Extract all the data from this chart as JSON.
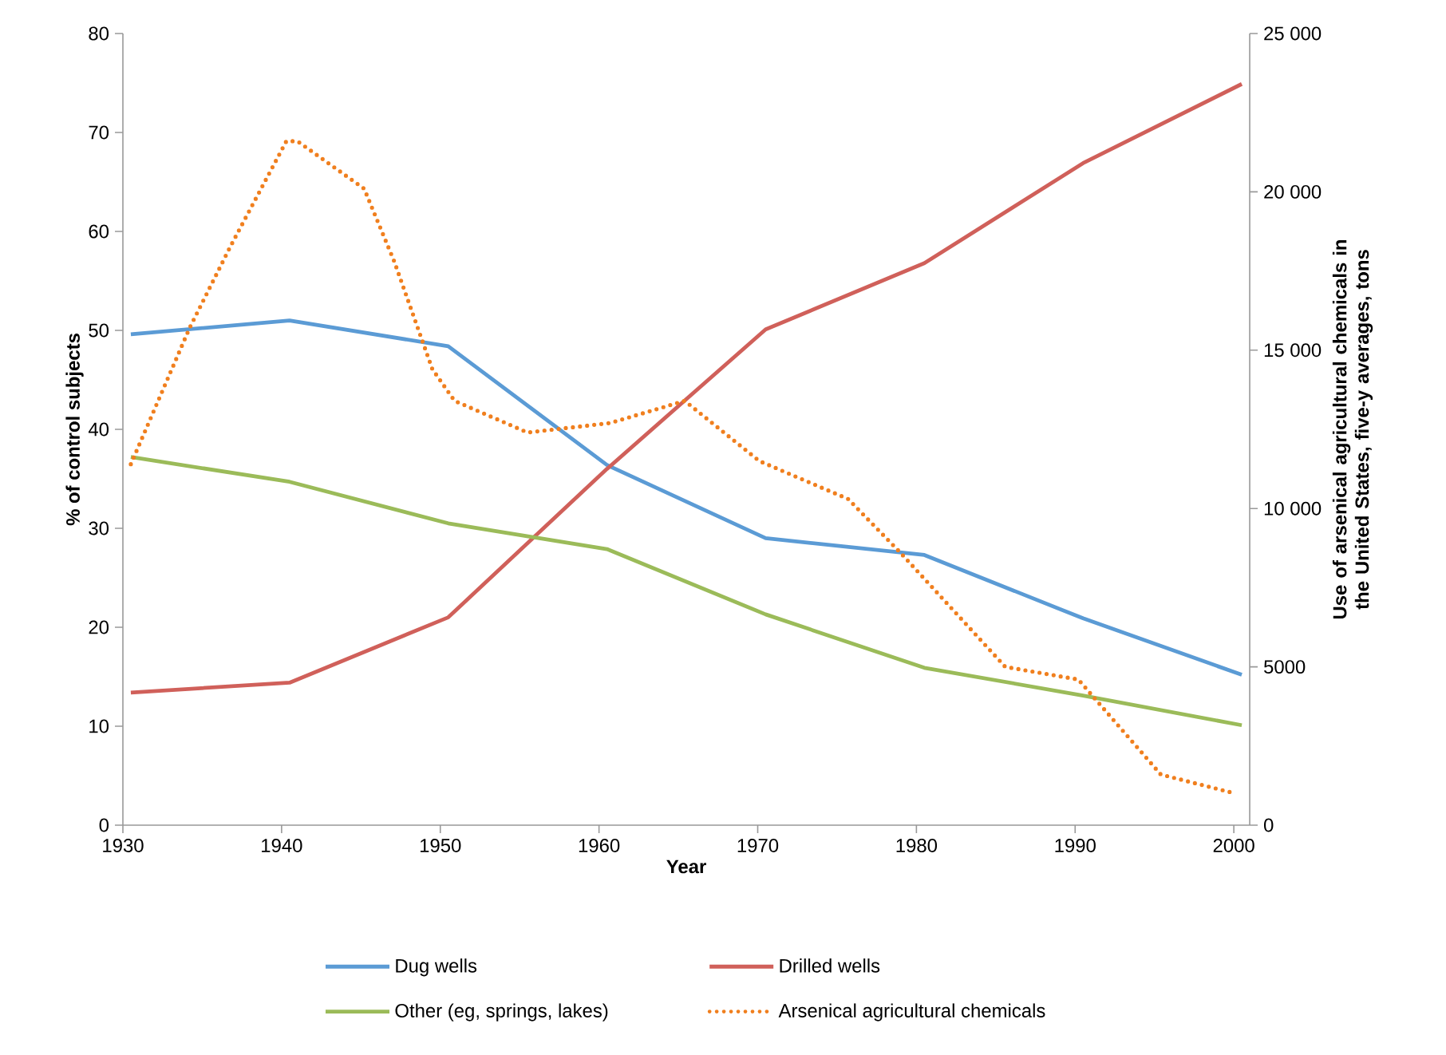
{
  "chart_data": {
    "type": "line",
    "xlabel": "Year",
    "ylabel": "% of control subjects",
    "y2label": "Use of arsenical agricultural chemicals in the United States, five-y averages, tons",
    "xlim": [
      1930,
      2001
    ],
    "xticks": [
      1930,
      1940,
      1950,
      1960,
      1970,
      1980,
      1990,
      2000
    ],
    "ylim": [
      0,
      80
    ],
    "yticks": [
      0,
      10,
      20,
      30,
      40,
      50,
      60,
      70,
      80
    ],
    "y2lim": [
      0,
      25000
    ],
    "y2ticks": [
      0,
      5000,
      {
        "value": 10000,
        "label": "10 000"
      },
      {
        "value": 15000,
        "label": "15 000"
      },
      {
        "value": 20000,
        "label": "20 000"
      },
      {
        "value": 25000,
        "label": "25 000"
      }
    ],
    "grid": false,
    "legend": "bottom",
    "marker": "none",
    "x": [
      1930.5,
      1940.5,
      1950.5,
      1960.5,
      1970.5,
      1980.5,
      1990.5,
      2000.5
    ],
    "series": [
      {
        "name": "Dug wells",
        "color": "#5b9bd5",
        "line_style": "solid",
        "values": [
          49.6,
          51.0,
          48.4,
          36.4,
          29.0,
          27.3,
          20.9,
          15.2
        ]
      },
      {
        "name": "Drilled wells",
        "color": "#d0605a",
        "line_style": "solid",
        "values": [
          13.4,
          14.4,
          21.0,
          36.0,
          50.1,
          56.8,
          66.9,
          74.9
        ]
      },
      {
        "name": "Other (eg, springs, lakes)",
        "color": "#9bbb59",
        "line_style": "solid",
        "values": [
          37.2,
          34.7,
          30.5,
          27.9,
          21.3,
          15.9,
          13.1,
          10.1
        ]
      },
      {
        "name": "Arsenical agricultural chemicals",
        "color": "#f07f1e",
        "line_style": "dotted",
        "axis": "y2",
        "x": [
          1930.5,
          1934.2,
          1936.8,
          1940.3,
          1941,
          1945.2,
          1947.1,
          1949.5,
          1950.9,
          1955.5,
          1960.7,
          1965.4,
          1970.1,
          1975.7,
          1979,
          1985.6,
          1990.2,
          1995.4,
          2000.1
        ],
        "values": [
          11400,
          15700,
          18300,
          21600,
          21600,
          20100,
          17800,
          14400,
          13400,
          12400,
          12700,
          13400,
          11500,
          10300,
          8600,
          5000,
          4600,
          1600,
          1000
        ]
      }
    ]
  }
}
